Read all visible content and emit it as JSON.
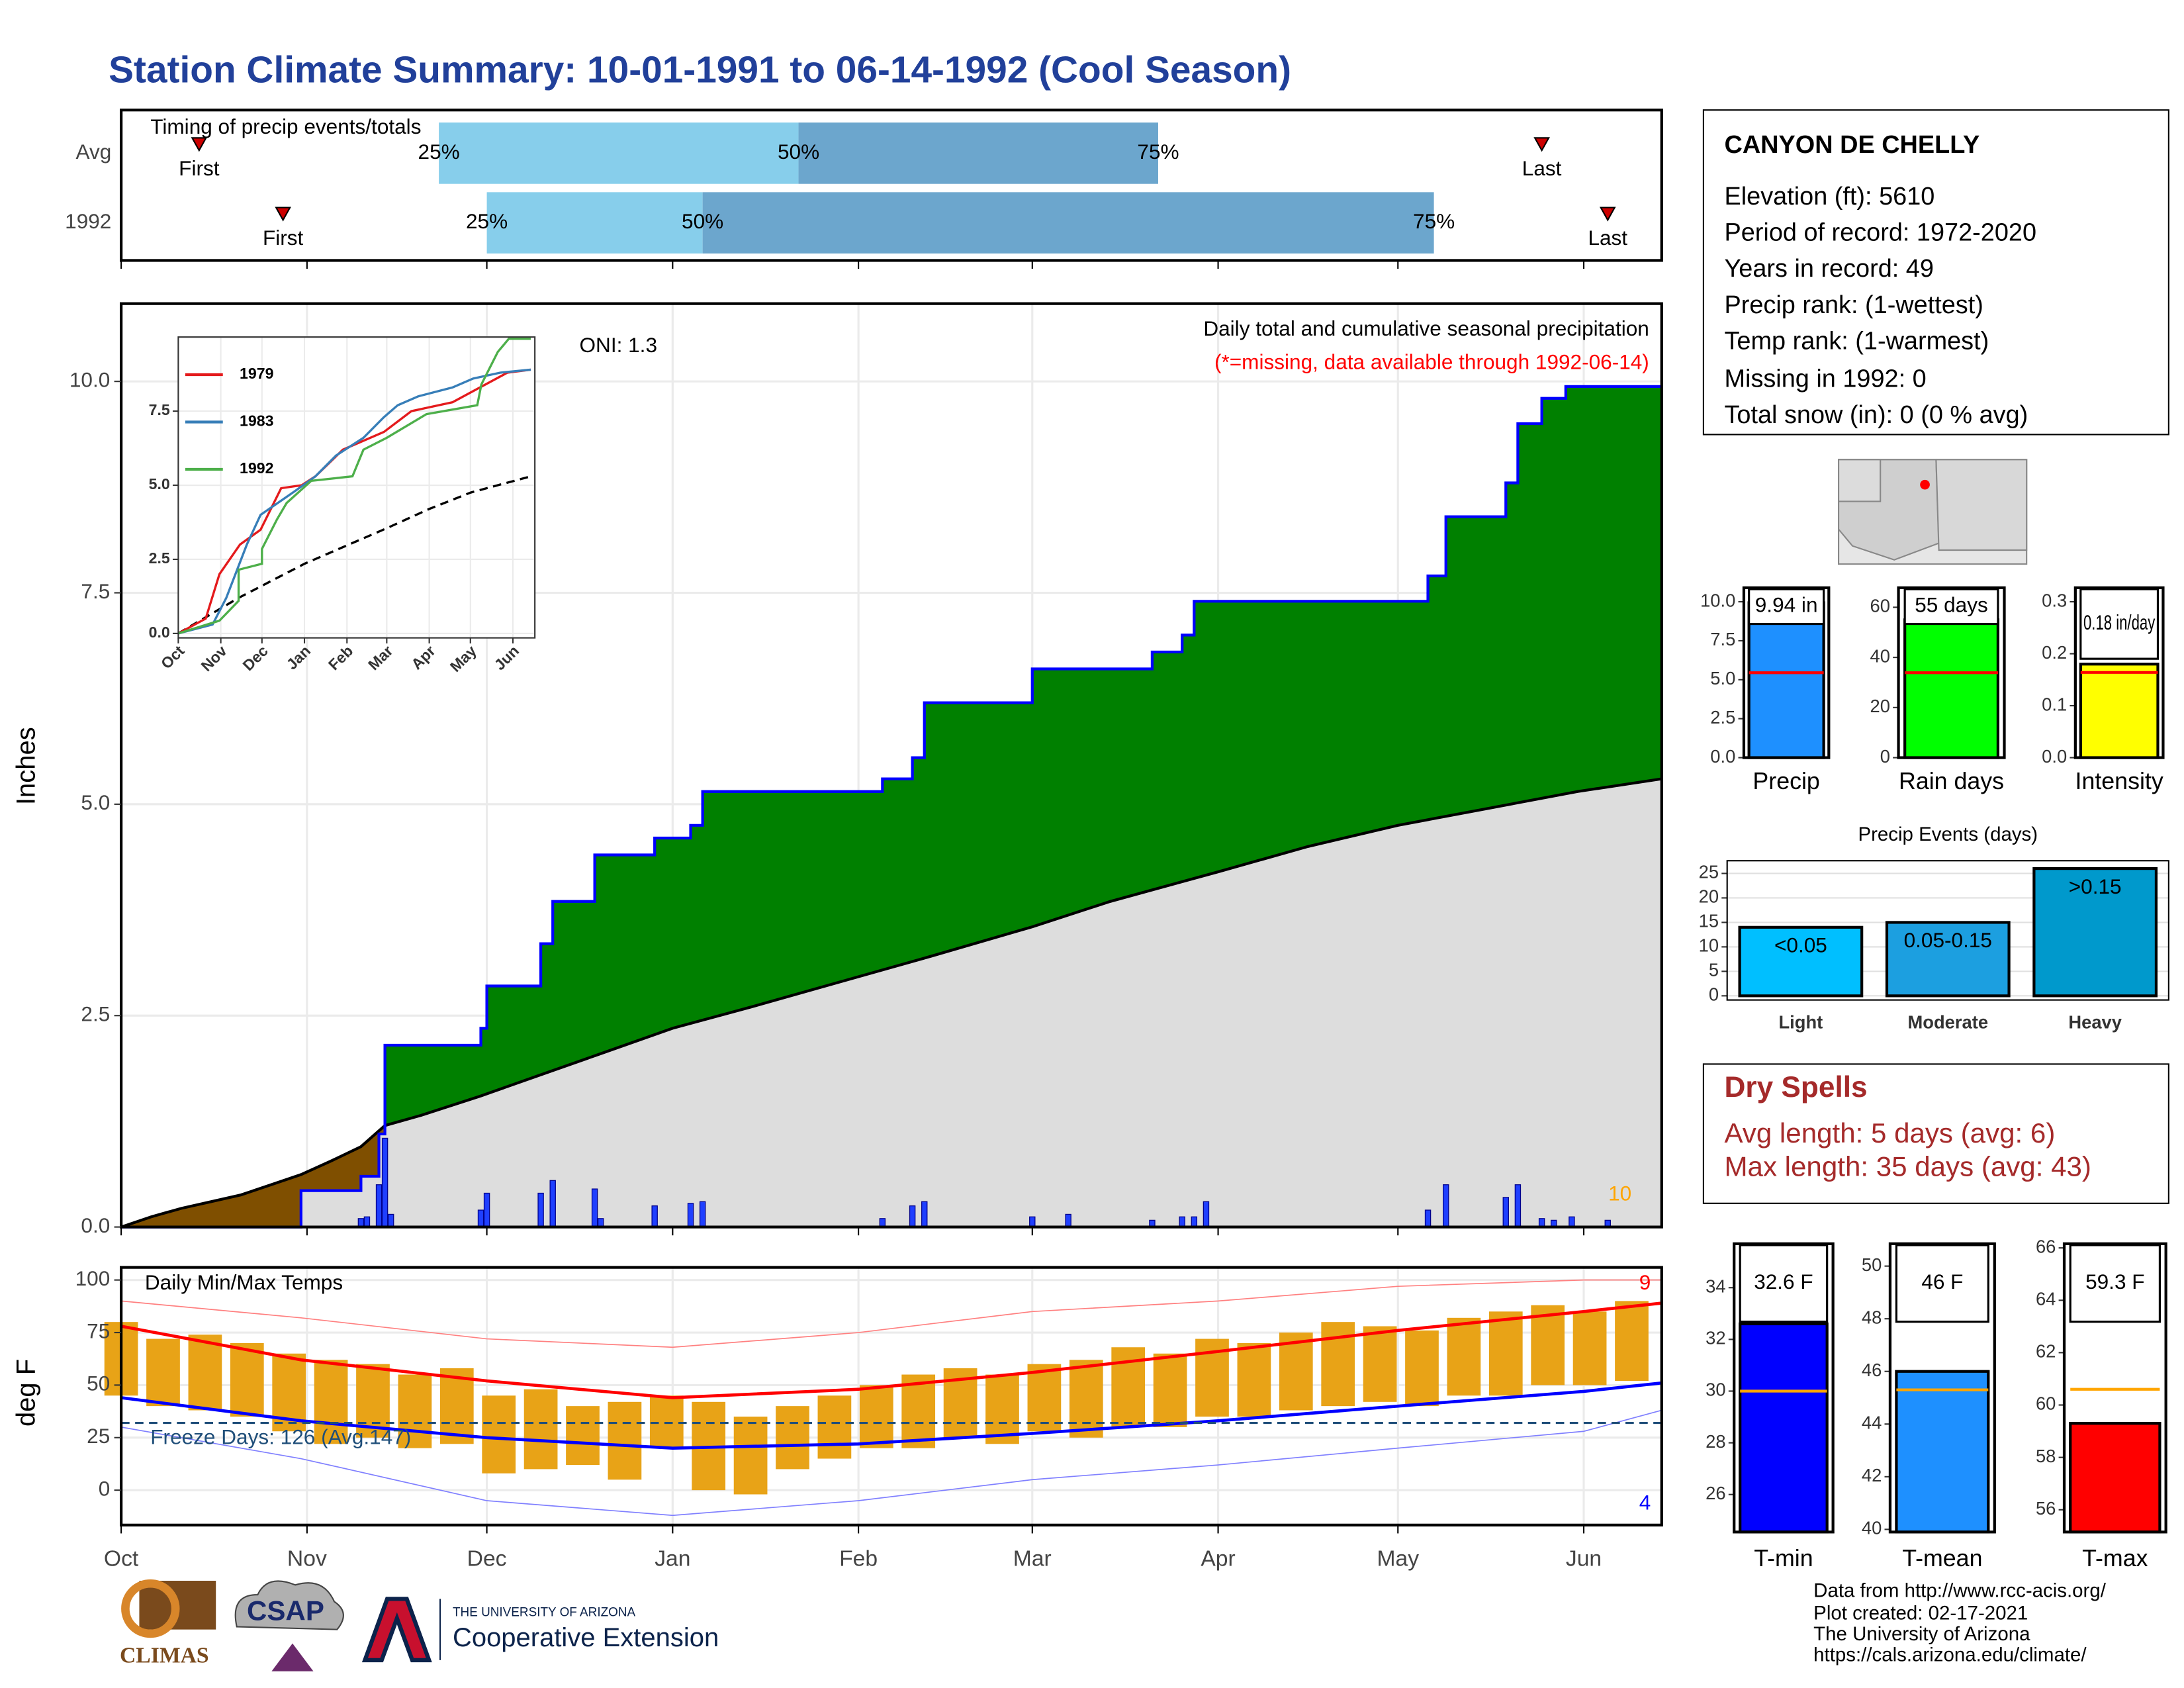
{
  "title": "Station Climate Summary: 10-01-1991 to 06-14-1992 (Cool Season)",
  "station": {
    "name": "CANYON DE CHELLY",
    "lines": [
      "Elevation (ft): 5610",
      "Period of record: 1972-2020",
      "Years in record: 49",
      "Precip rank:  (1-wettest)",
      "Temp rank:  (1-warmest)",
      "Missing in 1992: 0",
      "Total snow (in): 0 (0 % avg)"
    ]
  },
  "dry_spells": {
    "title": "Dry Spells",
    "lines": [
      "Avg length: 5 days (avg: 6)",
      "Max length: 35 days (avg: 43)"
    ]
  },
  "footer": [
    "Data from http://www.rcc-acis.org/",
    "Plot created: 02-17-2021",
    "The University of Arizona",
    "https://cals.arizona.edu/climate/"
  ],
  "logos": {
    "climas": "CLIMAS",
    "csap": "CSAP",
    "university": "THE UNIVERSITY OF ARIZONA",
    "extension": "Cooperative Extension"
  },
  "chart_data": [
    {
      "type": "timing",
      "title": "Timing of precip events/totals",
      "categories": [
        "Avg",
        "1992"
      ],
      "series": [
        {
          "name": "First",
          "values": [
            13,
            27
          ]
        },
        {
          "name": "25%",
          "values": [
            53,
            61
          ]
        },
        {
          "name": "50%",
          "values": [
            113,
            97
          ]
        },
        {
          "name": "75%",
          "values": [
            173,
            219
          ]
        },
        {
          "name": "Last",
          "values": [
            237,
            248
          ]
        }
      ],
      "band_colors": [
        "#87ceeb",
        "#6ca6cd"
      ],
      "marker_color": "#cc0000",
      "xlim": [
        0,
        257
      ],
      "xticks": [
        0,
        31,
        61,
        92,
        123,
        152,
        183,
        213,
        244
      ]
    },
    {
      "type": "cumulative",
      "title": "Daily total and cumulative seasonal precipitation",
      "subtitle": "(*=missing, data available through 1992-06-14)",
      "annotations": [
        "ONI: 1.3",
        "10"
      ],
      "y_label": "Inches",
      "grid": true,
      "cumulative": {
        "x": [
          0,
          30,
          30,
          40,
          40,
          43,
          43,
          44,
          44,
          60,
          60,
          61,
          61,
          70,
          70,
          72,
          72,
          79,
          79,
          89,
          89,
          95,
          95,
          97,
          97,
          127,
          127,
          132,
          132,
          134,
          134,
          152,
          152,
          172,
          172,
          177,
          177,
          179,
          179,
          218,
          218,
          221,
          221,
          231,
          231,
          233,
          233,
          237,
          237,
          241,
          241,
          257
        ],
        "values": [
          0,
          0,
          0.43,
          0.43,
          0.6,
          0.6,
          1.1,
          1.1,
          2.15,
          2.15,
          2.35,
          2.35,
          2.85,
          2.85,
          3.35,
          3.35,
          3.85,
          3.85,
          4.4,
          4.4,
          4.6,
          4.6,
          4.75,
          4.75,
          5.15,
          5.15,
          5.3,
          5.3,
          5.55,
          5.55,
          6.2,
          6.2,
          6.6,
          6.6,
          6.8,
          6.8,
          7.0,
          7.0,
          7.4,
          7.4,
          7.7,
          7.7,
          8.4,
          8.4,
          8.8,
          8.8,
          9.5,
          9.5,
          9.8,
          9.8,
          9.94,
          9.94
        ],
        "color": "#0000ff",
        "fill": "#008000",
        "deficit_fill": "#7f4f00"
      },
      "average": {
        "x": [
          0,
          5,
          10,
          15,
          20,
          25,
          30,
          35,
          40,
          44,
          50,
          60,
          70,
          80,
          92,
          105,
          120,
          135,
          152,
          165,
          183,
          198,
          213,
          228,
          243,
          257
        ],
        "values": [
          0,
          0.12,
          0.22,
          0.3,
          0.38,
          0.5,
          0.62,
          0.78,
          0.95,
          1.2,
          1.32,
          1.55,
          1.8,
          2.05,
          2.35,
          2.6,
          2.9,
          3.2,
          3.55,
          3.85,
          4.2,
          4.5,
          4.75,
          4.95,
          5.15,
          5.3
        ],
        "color": "#000000",
        "fill": "#dddddd"
      },
      "daily": {
        "x": [
          40,
          41,
          43,
          44,
          45,
          60,
          61,
          70,
          72,
          79,
          80,
          89,
          95,
          97,
          127,
          132,
          134,
          152,
          158,
          172,
          177,
          179,
          181,
          218,
          221,
          231,
          233,
          237,
          239,
          242,
          248
        ],
        "values": [
          0.1,
          0.12,
          0.5,
          1.05,
          0.15,
          0.2,
          0.4,
          0.4,
          0.55,
          0.45,
          0.1,
          0.25,
          0.28,
          0.3,
          0.1,
          0.25,
          0.3,
          0.12,
          0.15,
          0.08,
          0.12,
          0.12,
          0.3,
          0.2,
          0.5,
          0.35,
          0.5,
          0.1,
          0.08,
          0.12,
          0.08
        ],
        "color": "#1f3fff"
      },
      "xlim": [
        0,
        257
      ],
      "xticks": [
        0,
        31,
        61,
        92,
        123,
        152,
        183,
        213,
        244
      ],
      "ylim": [
        0,
        10.92
      ],
      "yticks": [
        {
          "value": 0,
          "label": "0.0"
        },
        {
          "value": 2.5,
          "label": "2.5"
        },
        {
          "value": 5,
          "label": "5.0"
        },
        {
          "value": 7.5,
          "label": "7.5"
        },
        {
          "value": 10,
          "label": "10.0"
        }
      ]
    },
    {
      "type": "line",
      "grid": true,
      "series": [
        {
          "name": "1979",
          "color": "#e41a1c",
          "x": [
            0,
            20,
            30,
            45,
            60,
            75,
            90,
            100,
            120,
            150,
            170,
            200,
            220,
            240,
            257
          ],
          "values": [
            0,
            0.5,
            2,
            3,
            3.5,
            4.9,
            5.0,
            5.3,
            6.2,
            6.8,
            7.5,
            7.8,
            8.3,
            8.8,
            8.9
          ]
        },
        {
          "name": "1983",
          "color": "#377eb8",
          "x": [
            0,
            25,
            35,
            50,
            60,
            85,
            100,
            115,
            135,
            150,
            160,
            175,
            200,
            215,
            235,
            257
          ],
          "values": [
            0,
            0.3,
            1.2,
            3,
            4,
            4.8,
            5.3,
            6,
            6.6,
            7.3,
            7.7,
            8,
            8.3,
            8.6,
            8.8,
            8.9
          ]
        },
        {
          "name": "1992",
          "color": "#4daf4a",
          "x": [
            0,
            30,
            44,
            44,
            61,
            61,
            72,
            79,
            97,
            127,
            135,
            152,
            181,
            218,
            221,
            233,
            241,
            257
          ],
          "values": [
            0,
            0.43,
            1.1,
            2.15,
            2.35,
            2.85,
            3.85,
            4.4,
            5.15,
            5.3,
            6.2,
            6.6,
            7.4,
            7.7,
            8.4,
            9.5,
            9.94,
            9.94
          ]
        }
      ],
      "average": {
        "x": [
          0,
          44,
          92,
          152,
          183,
          213,
          257
        ],
        "values": [
          0,
          1.2,
          2.35,
          3.55,
          4.2,
          4.75,
          5.3
        ],
        "color": "#000000"
      },
      "xlim": [
        0,
        260
      ],
      "xticks": [
        {
          "value": 0,
          "label": "Oct"
        },
        {
          "value": 31,
          "label": "Nov"
        },
        {
          "value": 61,
          "label": "Dec"
        },
        {
          "value": 92,
          "label": "Jan"
        },
        {
          "value": 123,
          "label": "Feb"
        },
        {
          "value": 152,
          "label": "Mar"
        },
        {
          "value": 183,
          "label": "Apr"
        },
        {
          "value": 213,
          "label": "May"
        },
        {
          "value": 244,
          "label": "Jun"
        }
      ],
      "ylim": [
        -0.15,
        10
      ],
      "yticks": [
        {
          "value": 0,
          "label": "0.0"
        },
        {
          "value": 2.5,
          "label": "2.5"
        },
        {
          "value": 5,
          "label": "5.0"
        },
        {
          "value": 7.5,
          "label": "7.5"
        }
      ]
    },
    {
      "type": "temperature",
      "title": "Daily Min/Max Temps",
      "annotation": "Freeze Days: 126 (Avg.147)",
      "y_label": "deg F",
      "grid": true,
      "x": [
        0,
        7,
        14,
        21,
        28,
        35,
        42,
        49,
        56,
        63,
        70,
        77,
        84,
        91,
        98,
        105,
        112,
        119,
        126,
        133,
        140,
        147,
        154,
        161,
        168,
        175,
        182,
        189,
        196,
        203,
        210,
        217,
        224,
        231,
        238,
        245,
        252
      ],
      "tmax": [
        80,
        72,
        74,
        70,
        65,
        62,
        60,
        55,
        58,
        45,
        48,
        40,
        42,
        45,
        42,
        35,
        40,
        45,
        50,
        55,
        58,
        55,
        60,
        62,
        68,
        65,
        72,
        70,
        75,
        80,
        78,
        76,
        82,
        85,
        88,
        85,
        90
      ],
      "tmin": [
        45,
        40,
        38,
        35,
        28,
        22,
        25,
        20,
        22,
        8,
        10,
        12,
        5,
        20,
        0,
        -2,
        10,
        15,
        20,
        20,
        25,
        22,
        28,
        25,
        30,
        30,
        35,
        35,
        38,
        40,
        42,
        40,
        45,
        45,
        50,
        50,
        52
      ],
      "bar_color": "#e8a317",
      "normal_max": {
        "x": [
          0,
          30,
          61,
          92,
          123,
          152,
          183,
          213,
          244,
          257
        ],
        "values": [
          78,
          62,
          52,
          44,
          48,
          56,
          66,
          76,
          85,
          89
        ],
        "color": "#ff0000"
      },
      "normal_min": {
        "x": [
          0,
          30,
          61,
          92,
          123,
          152,
          183,
          213,
          244,
          257
        ],
        "values": [
          44,
          33,
          25,
          20,
          22,
          27,
          33,
          40,
          47,
          51
        ],
        "color": "#0000ff"
      },
      "record_max": {
        "x": [
          0,
          30,
          61,
          92,
          123,
          152,
          183,
          213,
          244,
          257
        ],
        "values": [
          90,
          82,
          72,
          68,
          75,
          85,
          90,
          97,
          100,
          100
        ],
        "color": "#ff8080"
      },
      "record_min": {
        "x": [
          0,
          30,
          61,
          92,
          123,
          152,
          183,
          213,
          244,
          257
        ],
        "values": [
          30,
          15,
          -5,
          -12,
          -5,
          5,
          12,
          20,
          28,
          38
        ],
        "color": "#8080ff"
      },
      "freeze": 32,
      "freeze_color": "#1f4e79",
      "record_high_days": 9,
      "record_high_color": "#ff0000",
      "record_low_days": 4,
      "record_low_color": "#0000ff",
      "xlim": [
        0,
        257
      ],
      "xticks": [
        {
          "value": 0,
          "label": "Oct"
        },
        {
          "value": 31,
          "label": "Nov"
        },
        {
          "value": 61,
          "label": "Dec"
        },
        {
          "value": 92,
          "label": "Jan"
        },
        {
          "value": 123,
          "label": "Feb"
        },
        {
          "value": 152,
          "label": "Mar"
        },
        {
          "value": 183,
          "label": "Apr"
        },
        {
          "value": 213,
          "label": "May"
        },
        {
          "value": 244,
          "label": "Jun"
        }
      ],
      "ylim": [
        -16.6,
        106
      ],
      "yticks": [
        0,
        25,
        50,
        75,
        100
      ]
    },
    {
      "type": "bar",
      "categories": [
        "Precip"
      ],
      "values": [
        9.94
      ],
      "value_labels": [
        "9.94 in"
      ],
      "average": 5.45,
      "color": "#1e90ff",
      "average_color": "#ff0000",
      "ylim": [
        0,
        10.9
      ],
      "yticks": [
        {
          "value": 0,
          "label": "0.0"
        },
        {
          "value": 2.5,
          "label": "2.5"
        },
        {
          "value": 5,
          "label": "5.0"
        },
        {
          "value": 7.5,
          "label": "7.5"
        },
        {
          "value": 10,
          "label": "10.0"
        }
      ]
    },
    {
      "type": "bar",
      "categories": [
        "Rain days"
      ],
      "values": [
        55
      ],
      "value_labels": [
        "55 days"
      ],
      "average": 33.9,
      "color": "#00ff00",
      "average_color": "#ff0000",
      "ylim": [
        0,
        67.8
      ],
      "yticks": [
        0,
        20,
        40,
        60
      ]
    },
    {
      "type": "bar",
      "categories": [
        "Intensity"
      ],
      "values": [
        0.18
      ],
      "value_labels": [
        "0.18 in/day"
      ],
      "average": 0.164,
      "color": "#ffff00",
      "average_color": "#ff0000",
      "ylim": [
        0,
        0.327
      ],
      "yticks": [
        {
          "value": 0,
          "label": "0.0"
        },
        0.1,
        0.2,
        0.3
      ]
    },
    {
      "type": "bar",
      "title": "Precip Events (days)",
      "categories": [
        "Light",
        "Moderate",
        "Heavy"
      ],
      "values": [
        14,
        15,
        26
      ],
      "bar_labels": [
        "<0.05",
        "0.05-0.15",
        ">0.15"
      ],
      "colors": [
        "#00bfff",
        "#1c9fe0",
        "#0099cc"
      ],
      "grid": true,
      "ylim": [
        -0.85,
        27.6
      ],
      "yticks": [
        0,
        5,
        10,
        15,
        20,
        25
      ]
    },
    {
      "type": "bar",
      "categories": [
        "T-min"
      ],
      "values": [
        32.6
      ],
      "value_labels": [
        "32.6 F"
      ],
      "average": 30.0,
      "color": "#0000ff",
      "average_color": "#ffa500",
      "ylim": [
        24.55,
        35.7
      ],
      "yticks": [
        26,
        28,
        30,
        32,
        34
      ]
    },
    {
      "type": "bar",
      "categories": [
        "T-mean"
      ],
      "values": [
        46
      ],
      "value_labels": [
        "46 F"
      ],
      "average": 45.3,
      "color": "#1e90ff",
      "average_color": "#ffa500",
      "ylim": [
        39.9,
        50.85
      ],
      "yticks": [
        40,
        42,
        44,
        46,
        48,
        50
      ]
    },
    {
      "type": "bar",
      "categories": [
        "T-max"
      ],
      "values": [
        59.3
      ],
      "value_labels": [
        "59.3 F"
      ],
      "average": 60.6,
      "color": "#ff0000",
      "average_color": "#ffa500",
      "ylim": [
        55.15,
        66.16
      ],
      "yticks": [
        56,
        58,
        60,
        62,
        64,
        66
      ]
    }
  ]
}
